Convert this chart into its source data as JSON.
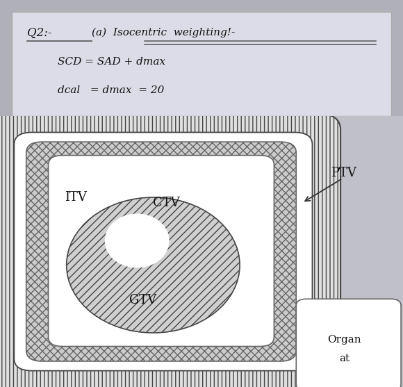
{
  "fig_bg": "#b0b0b8",
  "note_bg": "#dcdce8",
  "note_border": "#aaaaaa",
  "diag_bg": "#c0c0c8",
  "ptv_label": "PTV",
  "itv_label": "ITV",
  "ctv_label": "CTV",
  "gtv_label": "GTV",
  "organ_label_line1": "Organ",
  "organ_label_line2": "at",
  "hatch_ptv": "|||",
  "hatch_itv": "xxx",
  "hatch_gtv": "///",
  "arrow_color": "#333333",
  "text_color": "#111111",
  "outline_color": "#444444",
  "line1": "Q2:-  (a)  Isocentric  weighting!-",
  "line2": "SCD = SAD + dmax",
  "line3": "dcal   = dmax  = 20"
}
